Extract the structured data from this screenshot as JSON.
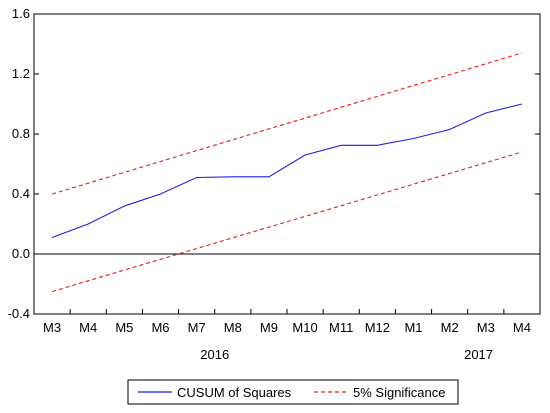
{
  "chart_data": {
    "type": "line",
    "categories": [
      "M3",
      "M4",
      "M5",
      "M6",
      "M7",
      "M8",
      "M9",
      "M10",
      "M11",
      "M12",
      "M1",
      "M2",
      "M3",
      "M4"
    ],
    "year_labels": [
      {
        "label": "2016",
        "at_category_index": 4.5
      },
      {
        "label": "2017",
        "at_category_index": 11.8
      }
    ],
    "ylim": [
      -0.4,
      1.6
    ],
    "yticks": [
      -0.4,
      0.0,
      0.4,
      0.8,
      1.2,
      1.6
    ],
    "ytick_labels": [
      "-0.4",
      "0.0",
      "0.4",
      "0.8",
      "1.2",
      "1.6"
    ],
    "zero_line": true,
    "grid": false,
    "legend_position": "bottom-center",
    "series": [
      {
        "name": "CUSUM of Squares",
        "style": "solid",
        "color": "#1f1fdc",
        "values": [
          0.11,
          0.2,
          0.32,
          0.4,
          0.51,
          0.515,
          0.515,
          0.66,
          0.725,
          0.725,
          0.77,
          0.83,
          0.94,
          1.0
        ]
      },
      {
        "name": "5% Significance",
        "style": "dashed",
        "color": "#e02020",
        "values": [
          0.4,
          0.4723,
          0.5446,
          0.6169,
          0.6892,
          0.7615,
          0.8338,
          0.9062,
          0.9785,
          1.0508,
          1.1231,
          1.1954,
          1.2677,
          1.34
        ]
      },
      {
        "name": "",
        "style": "dashed",
        "color": "#e02020",
        "values": [
          -0.25,
          -0.1785,
          -0.1069,
          -0.0354,
          0.0362,
          0.1077,
          0.1792,
          0.2508,
          0.3223,
          0.3938,
          0.4654,
          0.5369,
          0.6085,
          0.68
        ]
      }
    ]
  }
}
